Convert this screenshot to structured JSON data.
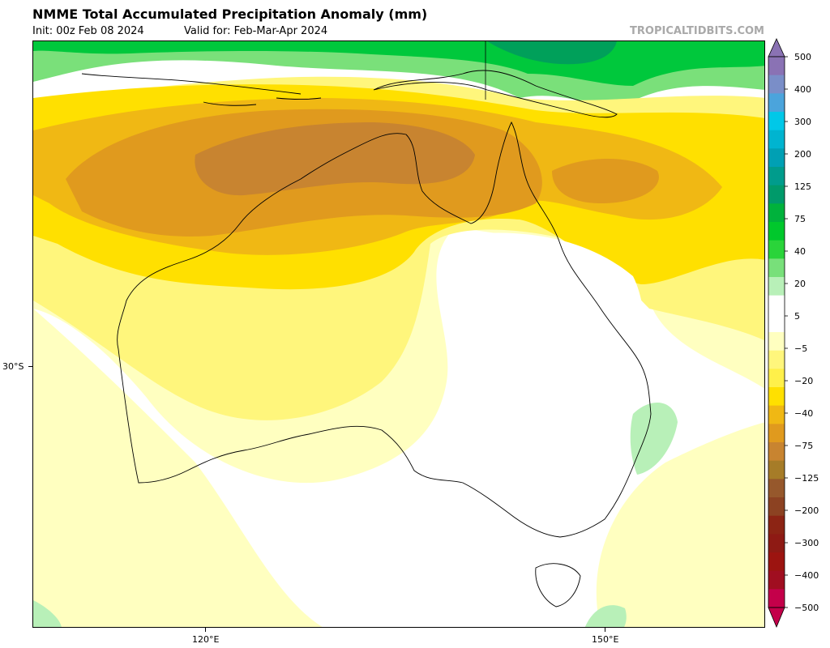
{
  "header": {
    "title": "NMME Total Accumulated Precipitation Anomaly (mm)",
    "init": "Init: 00z Feb 08 2024",
    "valid": "Valid for: Feb-Mar-Apr 2024",
    "credit": "TROPICALTIDBITS.COM"
  },
  "axes": {
    "lat_label": "30°S",
    "lon_labels": [
      "120°E",
      "150°E"
    ]
  },
  "colorbar": {
    "labels": [
      "500",
      "400",
      "300",
      "200",
      "125",
      "75",
      "40",
      "20",
      "5",
      "−5",
      "−20",
      "−40",
      "−75",
      "−125",
      "−200",
      "−300",
      "−400",
      "−500"
    ],
    "colors": [
      "#8a72b4",
      "#7a8ec8",
      "#4ba4dc",
      "#00c8e8",
      "#00b4d0",
      "#00a0b4",
      "#009c8c",
      "#009a6a",
      "#00b23c",
      "#00c82c",
      "#2ad43a",
      "#78e07a",
      "#b8f0b8",
      "#ffffff",
      "#ffffff",
      "#ffffc0",
      "#fff67c",
      "#fff04a",
      "#ffe000",
      "#f0b814",
      "#e09a1e",
      "#c88430",
      "#a67c28",
      "#96582c",
      "#8c4222",
      "#8c2414",
      "#8e1a14",
      "#9c1410",
      "#a00e20",
      "#c4004a"
    ]
  },
  "map": {
    "region": "Australia",
    "field": "precipitation anomaly"
  }
}
